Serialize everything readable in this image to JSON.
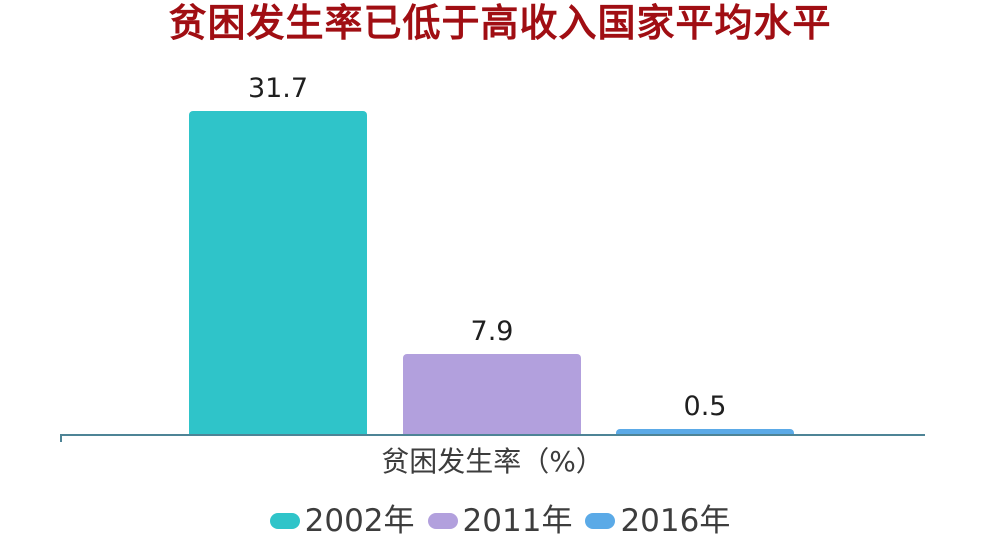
{
  "title_color": "#A00E13",
  "chart_data": {
    "type": "bar",
    "title": "贫困发生率已低于高收入国家平均水平",
    "categories": [
      "2002年",
      "2011年",
      "2016年"
    ],
    "values": [
      31.7,
      7.9,
      0.5
    ],
    "value_labels": [
      "31.7",
      "7.9",
      "0.5"
    ],
    "colors": [
      "#2FC4C9",
      "#B2A0DD",
      "#5BAAE7"
    ],
    "xlabel": "贫困发生率（%）",
    "ylabel": "",
    "ylim": [
      0,
      31.7
    ],
    "grid": false,
    "data_labels": true,
    "legend_position": "bottom"
  },
  "axis": {
    "line_color": "#4E8496"
  },
  "legend": {
    "items": [
      {
        "label": "2002年",
        "color": "#2FC4C9"
      },
      {
        "label": "2011年",
        "color": "#B2A0DD"
      },
      {
        "label": "2016年",
        "color": "#5BAAE7"
      }
    ]
  }
}
